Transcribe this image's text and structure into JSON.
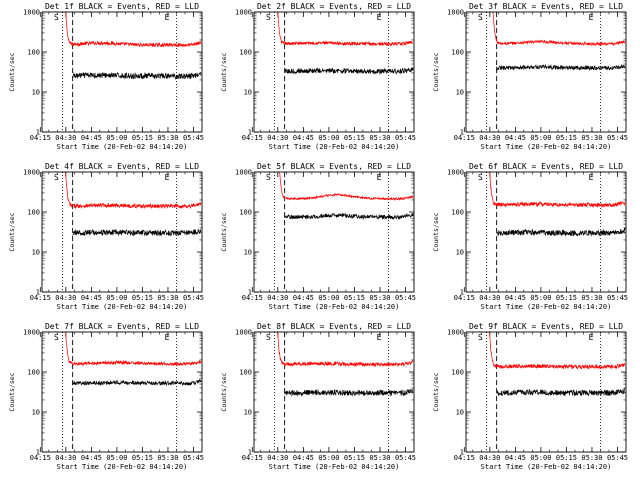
{
  "chart_data": [
    {
      "type": "line",
      "title": "Det 1f BLACK = Events, RED = LLD",
      "xlabel": "Start Time (20-Feb-02 04:14:20)",
      "ylabel": "Counts/sec",
      "yscale": "log",
      "ylim": [
        1,
        1000
      ],
      "yticks": [
        "1",
        "10",
        "100",
        "1000"
      ],
      "xticks": [
        "04:15",
        "04:30",
        "04:45",
        "05:00",
        "05:15",
        "05:30",
        "05:45"
      ],
      "x_range_min": [
        1,
        95
      ],
      "markers": {
        "S": 14.5,
        "E": 79.5
      },
      "dotted": [
        13,
        80
      ],
      "dashed": 19,
      "spike_end": 16,
      "series": [
        {
          "color": "#ff0000",
          "base": 150,
          "noise": 0.045,
          "bump": [
            35,
            15,
            1.12
          ]
        },
        {
          "color": "#000000",
          "base": 25,
          "noise": 0.07,
          "bump": [
            35,
            15,
            1.05
          ]
        }
      ],
      "grid": false,
      "legend": "none"
    },
    {
      "type": "line",
      "title": "Det 2f BLACK = Events, RED = LLD",
      "xlabel": "Start Time (20-Feb-02 04:14:20)",
      "ylabel": "Counts/sec",
      "yscale": "log",
      "ylim": [
        1,
        1000
      ],
      "yticks": [
        "1",
        "10",
        "100",
        "1000"
      ],
      "xticks": [
        "04:15",
        "04:30",
        "04:45",
        "05:00",
        "05:15",
        "05:30",
        "05:45"
      ],
      "x_range_min": [
        1,
        95
      ],
      "markers": {
        "S": 14.5,
        "E": 79.5
      },
      "dotted": [
        13,
        80
      ],
      "dashed": 19,
      "spike_end": 16,
      "series": [
        {
          "color": "#ff0000",
          "base": 160,
          "noise": 0.04,
          "bump": [
            40,
            18,
            1.05
          ]
        },
        {
          "color": "#000000",
          "base": 33,
          "noise": 0.06,
          "bump": [
            40,
            18,
            1.03
          ]
        }
      ],
      "grid": false,
      "legend": "none"
    },
    {
      "type": "line",
      "title": "Det 3f BLACK = Events, RED = LLD",
      "xlabel": "Start Time (20-Feb-02 04:14:20)",
      "ylabel": "Counts/sec",
      "yscale": "log",
      "ylim": [
        1,
        1000
      ],
      "yticks": [
        "1",
        "10",
        "100",
        "1000"
      ],
      "xticks": [
        "04:15",
        "04:30",
        "04:45",
        "05:00",
        "05:15",
        "05:30",
        "05:45"
      ],
      "x_range_min": [
        1,
        95
      ],
      "markers": {
        "S": 14.5,
        "E": 79.5
      },
      "dotted": [
        13,
        80
      ],
      "dashed": 19,
      "spike_end": 18,
      "series": [
        {
          "color": "#ff0000",
          "base": 160,
          "noise": 0.035,
          "bump": [
            45,
            15,
            1.12
          ]
        },
        {
          "color": "#000000",
          "base": 40,
          "noise": 0.05,
          "bump": [
            45,
            15,
            1.05
          ]
        }
      ],
      "grid": false,
      "legend": "none"
    },
    {
      "type": "line",
      "title": "Det 4f BLACK = Events, RED = LLD",
      "xlabel": "Start Time (20-Feb-02 04:14:20)",
      "ylabel": "Counts/sec",
      "yscale": "log",
      "ylim": [
        1,
        1000
      ],
      "yticks": [
        "1",
        "10",
        "100",
        "1000"
      ],
      "xticks": [
        "04:15",
        "04:30",
        "04:45",
        "05:00",
        "05:15",
        "05:30",
        "05:45"
      ],
      "x_range_min": [
        1,
        95
      ],
      "markers": {
        "S": 14.5,
        "E": 79.5
      },
      "dotted": [
        13,
        80
      ],
      "dashed": 19,
      "spike_end": 16,
      "series": [
        {
          "color": "#ff0000",
          "base": 140,
          "noise": 0.05,
          "bump": [
            40,
            15,
            1.05
          ]
        },
        {
          "color": "#000000",
          "base": 30,
          "noise": 0.07,
          "bump": [
            40,
            15,
            1.03
          ]
        }
      ],
      "grid": false,
      "legend": "none"
    },
    {
      "type": "line",
      "title": "Det 5f BLACK = Events, RED = LLD",
      "xlabel": "Start Time (20-Feb-02 04:14:20)",
      "ylabel": "Counts/sec",
      "yscale": "log",
      "ylim": [
        1,
        1000
      ],
      "yticks": [
        "1",
        "10",
        "100",
        "1000"
      ],
      "xticks": [
        "04:15",
        "04:30",
        "04:45",
        "05:00",
        "05:15",
        "05:30",
        "05:45"
      ],
      "x_range_min": [
        1,
        95
      ],
      "markers": {
        "S": 14.5,
        "E": 79.5
      },
      "dotted": [
        13,
        80
      ],
      "dashed": 19,
      "spike_end": 17,
      "series": [
        {
          "color": "#ff0000",
          "base": 215,
          "noise": 0.025,
          "bump": [
            50,
            12,
            1.25
          ]
        },
        {
          "color": "#000000",
          "base": 75,
          "noise": 0.05,
          "bump": [
            50,
            12,
            1.1
          ]
        }
      ],
      "grid": false,
      "legend": "none"
    },
    {
      "type": "line",
      "title": "Det 6f BLACK = Events, RED = LLD",
      "xlabel": "Start Time (20-Feb-02 04:14:20)",
      "ylabel": "Counts/sec",
      "yscale": "log",
      "ylim": [
        1,
        1000
      ],
      "yticks": [
        "1",
        "10",
        "100",
        "1000"
      ],
      "xticks": [
        "04:15",
        "04:30",
        "04:45",
        "05:00",
        "05:15",
        "05:30",
        "05:45"
      ],
      "x_range_min": [
        1,
        95
      ],
      "markers": {
        "S": 14.5,
        "E": 79.5
      },
      "dotted": [
        13,
        80
      ],
      "dashed": 19,
      "spike_end": 16,
      "series": [
        {
          "color": "#ff0000",
          "base": 150,
          "noise": 0.05,
          "bump": [
            40,
            15,
            1.05
          ]
        },
        {
          "color": "#000000",
          "base": 30,
          "noise": 0.07,
          "bump": [
            40,
            15,
            1.03
          ]
        }
      ],
      "grid": false,
      "legend": "none"
    },
    {
      "type": "line",
      "title": "Det 7f BLACK = Events, RED = LLD",
      "xlabel": "Start Time (20-Feb-02 04:14:20)",
      "ylabel": "Counts/sec",
      "yscale": "log",
      "ylim": [
        1,
        1000
      ],
      "yticks": [
        "1",
        "10",
        "100",
        "1000"
      ],
      "xticks": [
        "04:15",
        "04:30",
        "04:45",
        "05:00",
        "05:15",
        "05:30",
        "05:45"
      ],
      "x_range_min": [
        1,
        95
      ],
      "markers": {
        "S": 14.5,
        "E": 79.5
      },
      "dotted": [
        13,
        80
      ],
      "dashed": 19,
      "spike_end": 16,
      "series": [
        {
          "color": "#ff0000",
          "base": 160,
          "noise": 0.04,
          "bump": [
            45,
            15,
            1.08
          ]
        },
        {
          "color": "#000000",
          "base": 52,
          "noise": 0.05,
          "bump": [
            45,
            15,
            1.05
          ]
        }
      ],
      "grid": false,
      "legend": "none"
    },
    {
      "type": "line",
      "title": "Det 8f BLACK = Events, RED = LLD",
      "xlabel": "Start Time (20-Feb-02 04:14:20)",
      "ylabel": "Counts/sec",
      "yscale": "log",
      "ylim": [
        1,
        1000
      ],
      "yticks": [
        "1",
        "10",
        "100",
        "1000"
      ],
      "xticks": [
        "04:15",
        "04:30",
        "04:45",
        "05:00",
        "05:15",
        "05:30",
        "05:45"
      ],
      "x_range_min": [
        1,
        95
      ],
      "markers": {
        "S": 14.5,
        "E": 79.5
      },
      "dotted": [
        13,
        80
      ],
      "dashed": 19,
      "spike_end": 16,
      "series": [
        {
          "color": "#ff0000",
          "base": 155,
          "noise": 0.045,
          "bump": [
            40,
            15,
            1.05
          ]
        },
        {
          "color": "#000000",
          "base": 30,
          "noise": 0.07,
          "bump": [
            40,
            15,
            1.03
          ]
        }
      ],
      "grid": false,
      "legend": "none"
    },
    {
      "type": "line",
      "title": "Det 9f BLACK = Events, RED = LLD",
      "xlabel": "Start Time (20-Feb-02 04:14:20)",
      "ylabel": "Counts/sec",
      "yscale": "log",
      "ylim": [
        1,
        1000
      ],
      "yticks": [
        "1",
        "10",
        "100",
        "1000"
      ],
      "xticks": [
        "04:15",
        "04:30",
        "04:45",
        "05:00",
        "05:15",
        "05:30",
        "05:45"
      ],
      "x_range_min": [
        1,
        95
      ],
      "markers": {
        "S": 14.5,
        "E": 79.5
      },
      "dotted": [
        13,
        80
      ],
      "dashed": 19,
      "spike_end": 16,
      "series": [
        {
          "color": "#ff0000",
          "base": 135,
          "noise": 0.05,
          "bump": [
            40,
            15,
            1.05
          ]
        },
        {
          "color": "#000000",
          "base": 30,
          "noise": 0.07,
          "bump": [
            40,
            15,
            1.03
          ]
        }
      ],
      "grid": false,
      "legend": "none"
    }
  ]
}
